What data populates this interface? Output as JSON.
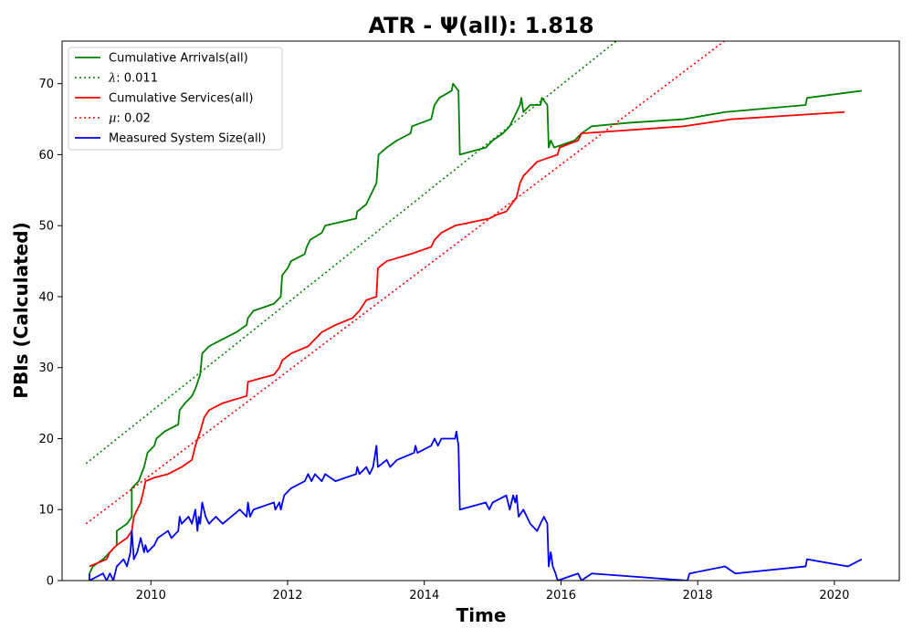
{
  "chart_data": {
    "type": "line",
    "title": "ATR -  Ψ(all): 1.818",
    "xlabel": "Time",
    "ylabel": "PBIs (Calculated)",
    "xlim": [
      2008.7,
      2020.95
    ],
    "ylim": [
      0,
      76
    ],
    "x_ticks": [
      2010,
      2012,
      2014,
      2016,
      2018,
      2020
    ],
    "y_ticks": [
      0,
      10,
      20,
      30,
      40,
      50,
      60,
      70
    ],
    "grid": false,
    "legend_position": "top-left",
    "series": [
      {
        "name": "Cumulative Arrivals(all)",
        "color": "#008000",
        "style": "solid",
        "points": [
          [
            2009.1,
            1
          ],
          [
            2009.15,
            2
          ],
          [
            2009.3,
            3
          ],
          [
            2009.4,
            4
          ],
          [
            2009.5,
            5
          ],
          [
            2009.5,
            7
          ],
          [
            2009.65,
            8
          ],
          [
            2009.72,
            9
          ],
          [
            2009.72,
            13
          ],
          [
            2009.82,
            14
          ],
          [
            2009.9,
            16
          ],
          [
            2009.95,
            18
          ],
          [
            2010.05,
            19
          ],
          [
            2010.08,
            20
          ],
          [
            2010.2,
            21
          ],
          [
            2010.4,
            22
          ],
          [
            2010.42,
            24
          ],
          [
            2010.5,
            25
          ],
          [
            2010.6,
            26
          ],
          [
            2010.65,
            27
          ],
          [
            2010.72,
            29
          ],
          [
            2010.75,
            32
          ],
          [
            2010.85,
            33
          ],
          [
            2011.05,
            34
          ],
          [
            2011.25,
            35
          ],
          [
            2011.4,
            36
          ],
          [
            2011.42,
            37
          ],
          [
            2011.5,
            38
          ],
          [
            2011.8,
            39
          ],
          [
            2011.9,
            40
          ],
          [
            2011.92,
            43
          ],
          [
            2012.0,
            44
          ],
          [
            2012.05,
            45
          ],
          [
            2012.25,
            46
          ],
          [
            2012.28,
            47
          ],
          [
            2012.33,
            48
          ],
          [
            2012.5,
            49
          ],
          [
            2012.55,
            50
          ],
          [
            2013.0,
            51
          ],
          [
            2013.02,
            52
          ],
          [
            2013.15,
            53
          ],
          [
            2013.2,
            54
          ],
          [
            2013.25,
            55
          ],
          [
            2013.3,
            56
          ],
          [
            2013.33,
            60
          ],
          [
            2013.45,
            61
          ],
          [
            2013.6,
            62
          ],
          [
            2013.8,
            63
          ],
          [
            2013.82,
            64
          ],
          [
            2014.1,
            65
          ],
          [
            2014.15,
            67
          ],
          [
            2014.22,
            68
          ],
          [
            2014.4,
            69
          ],
          [
            2014.42,
            70
          ],
          [
            2014.5,
            69
          ],
          [
            2014.52,
            60
          ],
          [
            2014.9,
            61
          ],
          [
            2015.0,
            62
          ],
          [
            2015.15,
            63
          ],
          [
            2015.25,
            64
          ],
          [
            2015.3,
            65
          ],
          [
            2015.35,
            66
          ],
          [
            2015.4,
            67
          ],
          [
            2015.42,
            68
          ],
          [
            2015.45,
            66
          ],
          [
            2015.55,
            67
          ],
          [
            2015.7,
            67
          ],
          [
            2015.72,
            68
          ],
          [
            2015.8,
            67
          ],
          [
            2015.82,
            61
          ],
          [
            2015.85,
            62
          ],
          [
            2015.9,
            61
          ],
          [
            2016.2,
            62
          ],
          [
            2016.3,
            63
          ],
          [
            2016.45,
            64
          ],
          [
            2017.0,
            64.5
          ],
          [
            2017.8,
            65
          ],
          [
            2018.4,
            66
          ],
          [
            2019.58,
            67
          ],
          [
            2019.6,
            68
          ],
          [
            2020.4,
            69
          ]
        ]
      },
      {
        "name": "λ: 0.011",
        "label_math": "λ",
        "label_value": ": 0.011",
        "color": "#008000",
        "style": "dotted",
        "points": [
          [
            2009.05,
            16.5
          ],
          [
            2016.81,
            76
          ]
        ]
      },
      {
        "name": "Cumulative Services(all)",
        "color": "#ff0000",
        "style": "solid",
        "points": [
          [
            2009.1,
            2
          ],
          [
            2009.35,
            3
          ],
          [
            2009.4,
            4
          ],
          [
            2009.5,
            5
          ],
          [
            2009.65,
            6
          ],
          [
            2009.72,
            7
          ],
          [
            2009.75,
            9
          ],
          [
            2009.85,
            11
          ],
          [
            2009.9,
            13
          ],
          [
            2009.92,
            14
          ],
          [
            2010.05,
            14.5
          ],
          [
            2010.25,
            15
          ],
          [
            2010.45,
            16
          ],
          [
            2010.6,
            17
          ],
          [
            2010.65,
            19
          ],
          [
            2010.72,
            21
          ],
          [
            2010.78,
            23
          ],
          [
            2010.85,
            24
          ],
          [
            2011.05,
            25
          ],
          [
            2011.4,
            26
          ],
          [
            2011.42,
            28
          ],
          [
            2011.8,
            29
          ],
          [
            2011.88,
            30
          ],
          [
            2011.92,
            31
          ],
          [
            2012.05,
            32
          ],
          [
            2012.3,
            33
          ],
          [
            2012.4,
            34
          ],
          [
            2012.5,
            35
          ],
          [
            2012.7,
            36
          ],
          [
            2012.95,
            37
          ],
          [
            2013.05,
            38
          ],
          [
            2013.15,
            39.5
          ],
          [
            2013.3,
            40
          ],
          [
            2013.32,
            44
          ],
          [
            2013.45,
            45
          ],
          [
            2013.8,
            46
          ],
          [
            2014.1,
            47
          ],
          [
            2014.15,
            48
          ],
          [
            2014.25,
            49
          ],
          [
            2014.45,
            50
          ],
          [
            2014.95,
            51
          ],
          [
            2015.05,
            51.5
          ],
          [
            2015.2,
            52
          ],
          [
            2015.35,
            54
          ],
          [
            2015.4,
            56
          ],
          [
            2015.45,
            57
          ],
          [
            2015.55,
            58
          ],
          [
            2015.65,
            59
          ],
          [
            2015.95,
            60
          ],
          [
            2015.98,
            61
          ],
          [
            2016.25,
            62
          ],
          [
            2016.3,
            63
          ],
          [
            2017.8,
            64
          ],
          [
            2018.5,
            65
          ],
          [
            2020.15,
            66
          ]
        ]
      },
      {
        "name": "μ: 0.02",
        "label_math": "μ",
        "label_value": ": 0.02",
        "color": "#ff0000",
        "style": "dotted",
        "points": [
          [
            2009.05,
            8
          ],
          [
            2018.39,
            76
          ]
        ]
      },
      {
        "name": "Measured System Size(all)",
        "color": "#0000ff",
        "style": "solid",
        "points": [
          [
            2009.1,
            1
          ],
          [
            2009.1,
            0
          ],
          [
            2009.3,
            1
          ],
          [
            2009.35,
            0
          ],
          [
            2009.4,
            1
          ],
          [
            2009.45,
            0
          ],
          [
            2009.5,
            2
          ],
          [
            2009.6,
            3
          ],
          [
            2009.65,
            2
          ],
          [
            2009.7,
            4
          ],
          [
            2009.72,
            7
          ],
          [
            2009.75,
            3
          ],
          [
            2009.8,
            4
          ],
          [
            2009.85,
            6
          ],
          [
            2009.9,
            4
          ],
          [
            2009.92,
            5
          ],
          [
            2009.95,
            4
          ],
          [
            2010.05,
            5
          ],
          [
            2010.1,
            6
          ],
          [
            2010.25,
            7
          ],
          [
            2010.3,
            6
          ],
          [
            2010.4,
            7
          ],
          [
            2010.42,
            9
          ],
          [
            2010.45,
            8
          ],
          [
            2010.55,
            9
          ],
          [
            2010.6,
            8
          ],
          [
            2010.65,
            10
          ],
          [
            2010.68,
            7
          ],
          [
            2010.7,
            9
          ],
          [
            2010.72,
            8
          ],
          [
            2010.75,
            11
          ],
          [
            2010.8,
            9
          ],
          [
            2010.85,
            8
          ],
          [
            2010.95,
            9
          ],
          [
            2011.05,
            8
          ],
          [
            2011.3,
            10
          ],
          [
            2011.4,
            9
          ],
          [
            2011.42,
            11
          ],
          [
            2011.45,
            9
          ],
          [
            2011.5,
            10
          ],
          [
            2011.8,
            11
          ],
          [
            2011.82,
            10
          ],
          [
            2011.88,
            11
          ],
          [
            2011.9,
            10
          ],
          [
            2011.95,
            12
          ],
          [
            2012.05,
            13
          ],
          [
            2012.25,
            14
          ],
          [
            2012.3,
            15
          ],
          [
            2012.35,
            14
          ],
          [
            2012.4,
            15
          ],
          [
            2012.5,
            14
          ],
          [
            2012.55,
            15
          ],
          [
            2012.7,
            14
          ],
          [
            2013.0,
            15
          ],
          [
            2013.02,
            16
          ],
          [
            2013.05,
            15
          ],
          [
            2013.15,
            16
          ],
          [
            2013.2,
            15
          ],
          [
            2013.25,
            16
          ],
          [
            2013.3,
            19
          ],
          [
            2013.32,
            16
          ],
          [
            2013.45,
            17
          ],
          [
            2013.5,
            16
          ],
          [
            2013.6,
            17
          ],
          [
            2013.85,
            18
          ],
          [
            2013.87,
            19
          ],
          [
            2013.9,
            18
          ],
          [
            2014.1,
            19
          ],
          [
            2014.15,
            20
          ],
          [
            2014.2,
            19
          ],
          [
            2014.25,
            20
          ],
          [
            2014.45,
            20
          ],
          [
            2014.47,
            21
          ],
          [
            2014.5,
            19
          ],
          [
            2014.52,
            10
          ],
          [
            2014.9,
            11
          ],
          [
            2014.95,
            10
          ],
          [
            2015.0,
            11
          ],
          [
            2015.1,
            11.5
          ],
          [
            2015.2,
            12
          ],
          [
            2015.25,
            10
          ],
          [
            2015.3,
            12
          ],
          [
            2015.33,
            11
          ],
          [
            2015.35,
            12
          ],
          [
            2015.38,
            9
          ],
          [
            2015.45,
            10
          ],
          [
            2015.55,
            8
          ],
          [
            2015.65,
            7
          ],
          [
            2015.7,
            8
          ],
          [
            2015.75,
            9
          ],
          [
            2015.8,
            8
          ],
          [
            2015.82,
            2
          ],
          [
            2015.85,
            4
          ],
          [
            2015.88,
            2
          ],
          [
            2015.92,
            1
          ],
          [
            2015.95,
            0
          ],
          [
            2016.25,
            1
          ],
          [
            2016.3,
            0
          ],
          [
            2016.45,
            1
          ],
          [
            2017.85,
            0
          ],
          [
            2017.88,
            1
          ],
          [
            2018.4,
            2
          ],
          [
            2018.55,
            1
          ],
          [
            2019.58,
            2
          ],
          [
            2019.6,
            3
          ],
          [
            2020.2,
            2
          ],
          [
            2020.4,
            3
          ]
        ]
      }
    ]
  }
}
